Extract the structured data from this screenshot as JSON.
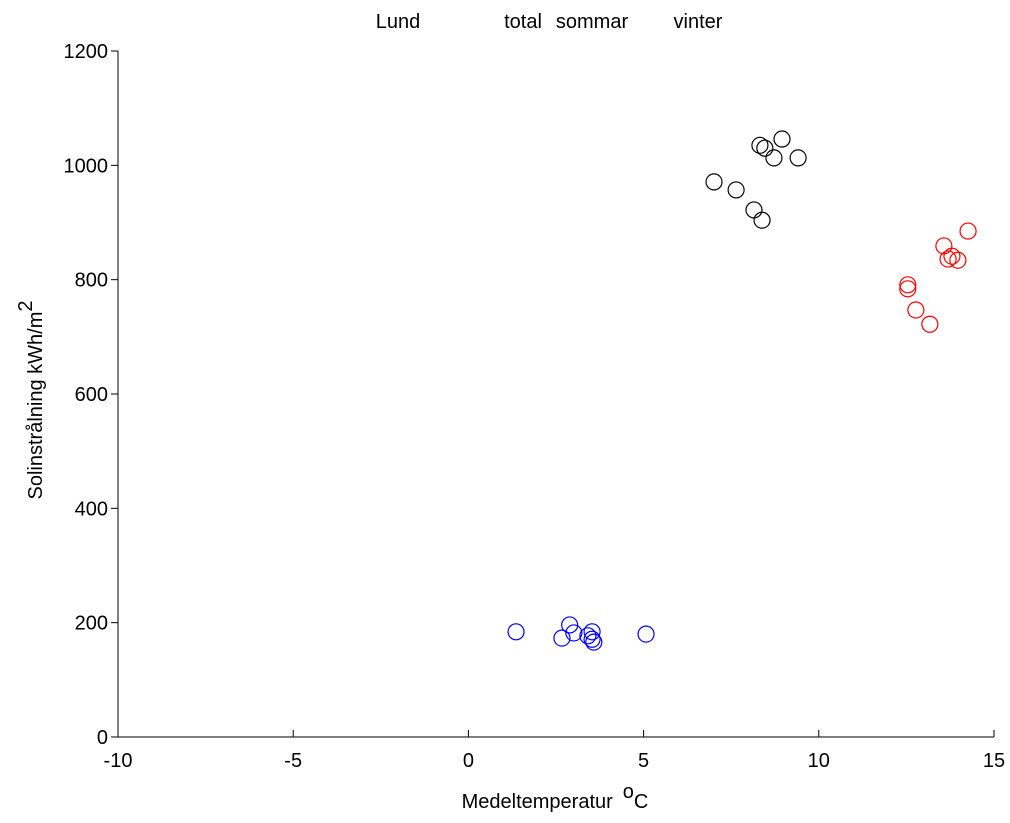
{
  "chart_data": {
    "type": "scatter",
    "title": "Lund",
    "xlabel": {
      "text": "Medeltemperatur",
      "sup": "o",
      "unit": "C"
    },
    "ylabel": {
      "text": "Solinstrålning  kWh/m",
      "sup": "2"
    },
    "xlim": [
      -10,
      15
    ],
    "xticks": [
      -10,
      -5,
      0,
      5,
      10,
      15
    ],
    "ylim": [
      0,
      1200
    ],
    "yticks": [
      0,
      200,
      400,
      600,
      800,
      1000,
      1200
    ],
    "grid": false,
    "series": [
      {
        "name": "total",
        "color": "#000000",
        "x": [
          7.01,
          7.64,
          8.15,
          8.38,
          8.32,
          8.46,
          8.72,
          8.95,
          9.41
        ],
        "values": [
          971,
          957,
          922,
          904,
          1035,
          1030,
          1013,
          1046,
          1013
        ]
      },
      {
        "name": "sommar",
        "color": "#ff0000",
        "x": [
          12.54,
          12.54,
          12.77,
          13.17,
          13.57,
          13.69,
          13.8,
          13.97,
          14.26
        ],
        "values": [
          791,
          784,
          747,
          722,
          859,
          836,
          841,
          834,
          885
        ]
      },
      {
        "name": "vinter",
        "color": "#0000ff",
        "x": [
          1.36,
          2.67,
          2.89,
          3.01,
          3.41,
          3.53,
          3.53,
          3.58,
          5.07
        ],
        "values": [
          184,
          173,
          196,
          182,
          177,
          184,
          171,
          166,
          180
        ]
      }
    ]
  }
}
